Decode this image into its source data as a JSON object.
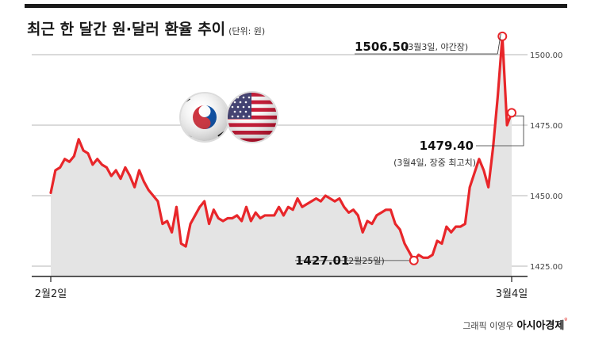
{
  "title": "최근 한 달간 원·달러 환율 추이",
  "unit_note": "(단위: 원)",
  "credit": {
    "graphic": "그래픽 이영우",
    "brand": "아시아경제",
    "brand_mark": "ᵍ"
  },
  "colors": {
    "line": "#e8262a",
    "area": "#e4e4e4",
    "grid": "#b5b5b5",
    "axis": "#222222",
    "marker_fill": "#ffffff"
  },
  "chart_data": {
    "type": "line",
    "ylim": [
      1420,
      1510
    ],
    "yticks": [
      1425,
      1450,
      1475,
      1500
    ],
    "ytick_labels": [
      "1425.00",
      "1450.00",
      "1475.00",
      "1500.00"
    ],
    "xlabel": "",
    "ylabel": "",
    "x_labels": [
      "2월2일",
      "3월4일"
    ],
    "grid": true,
    "series": [
      {
        "values": [
          1451,
          1459,
          1460,
          1463,
          1462,
          1464,
          1470,
          1466,
          1465,
          1461,
          1463,
          1461,
          1460,
          1457,
          1459,
          1456,
          1460,
          1457,
          1453,
          1459,
          1455,
          1452,
          1450,
          1448,
          1440,
          1441,
          1437,
          1446,
          1433,
          1432,
          1440,
          1443,
          1446,
          1448,
          1440,
          1445,
          1442,
          1441,
          1442,
          1442,
          1443,
          1441,
          1446,
          1441,
          1444,
          1442,
          1443,
          1443,
          1443,
          1446,
          1443,
          1446,
          1445,
          1449,
          1446,
          1447,
          1448,
          1449,
          1448,
          1450,
          1449,
          1448,
          1449,
          1446,
          1444,
          1445,
          1443,
          1437,
          1441,
          1440,
          1443,
          1444,
          1445,
          1445,
          1440,
          1438,
          1433,
          1430,
          1427.01,
          1429,
          1428,
          1428,
          1429,
          1434,
          1433,
          1439,
          1437,
          1439,
          1439,
          1440,
          1453,
          1458,
          1463,
          1459,
          1453,
          1467,
          1485,
          1506.5,
          1475,
          1479.4
        ]
      }
    ],
    "annotations": [
      {
        "point": "max",
        "value_text": "1506.50",
        "note": "(3월3일, 야간장)"
      },
      {
        "point": "last",
        "value_text": "1479.40",
        "note": "(3월4일, 장중 최고치)"
      },
      {
        "point": "min",
        "value_text": "1427.01",
        "note": "(2월25일)"
      }
    ]
  }
}
